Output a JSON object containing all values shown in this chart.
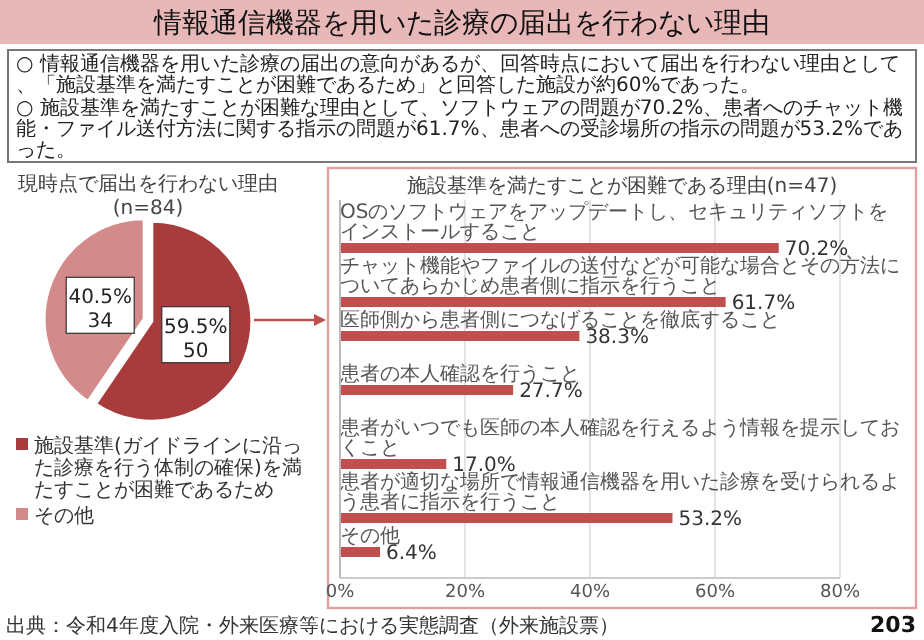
{
  "chart_data": [
    {
      "type": "other",
      "title": "情報通信機器を用いた診療の届出を行わない理由",
      "annotations": [
        "○ 情報通信機器を用いた診療の届出の意向があるが、回答時点において届出を行わない理由として、「施設基準を満たすことが困難であるため」と回答した施設が約60%であった。",
        "○ 施設基準を満たすことが困難な理由として、ソフトウェアの問題が70.2%、患者へのチャット機能・ファイル送付方法に関する指示の問題が61.7%、患者への受診場所の指示の問題が53.2%であった。",
        "出典：令和4年度入院・外来医療等における実態調査（外来施設票）",
        "203"
      ]
    },
    {
      "type": "pie",
      "title": "現時点で届出を行わない理由",
      "subtitle": "(n=84)",
      "categories": [
        "施設基準(ガイドラインに沿った診療を行う体制の確保)を満たすことが困難であるため",
        "その他"
      ],
      "values": [
        59.5,
        40.5
      ],
      "value_labels": [
        "59.5%\n50",
        "40.5%\n34"
      ],
      "colors": [
        "#a83c3c",
        "#d38a8a"
      ],
      "legend": "bottom"
    },
    {
      "type": "bar",
      "orientation": "horizontal",
      "title": "施設基準を満たすことが困難である理由(n=47)",
      "categories": [
        "OSのソフトウェアをアップデートし、セキュリティソフトをインストールすること",
        "チャット機能やファイルの送付などが可能な場合とその方法についてあらかじめ患者側に指示を行うこと",
        "医師側から患者側につなげることを徹底すること",
        "患者の本人確認を行うこと",
        "患者がいつでも医師の本人確認を行えるよう情報を提示しておくこと",
        "患者が適切な場所で情報通信機器を用いた診療を受けられるよう患者に指示を行うこと",
        "その他"
      ],
      "values": [
        70.2,
        61.7,
        38.3,
        27.7,
        17.0,
        53.2,
        6.4
      ],
      "value_labels": [
        "70.2%",
        "61.7%",
        "38.3%",
        "27.7%",
        "17.0%",
        "53.2%",
        "6.4%"
      ],
      "color": "#c0504d",
      "xlim": [
        0,
        80
      ],
      "xticks": [
        {
          "value": 0,
          "label": "0%"
        },
        {
          "value": 20,
          "label": "20%"
        },
        {
          "value": 40,
          "label": "40%"
        },
        {
          "value": 60,
          "label": "60%"
        },
        {
          "value": 80,
          "label": "80%"
        }
      ],
      "grid": "x"
    }
  ]
}
